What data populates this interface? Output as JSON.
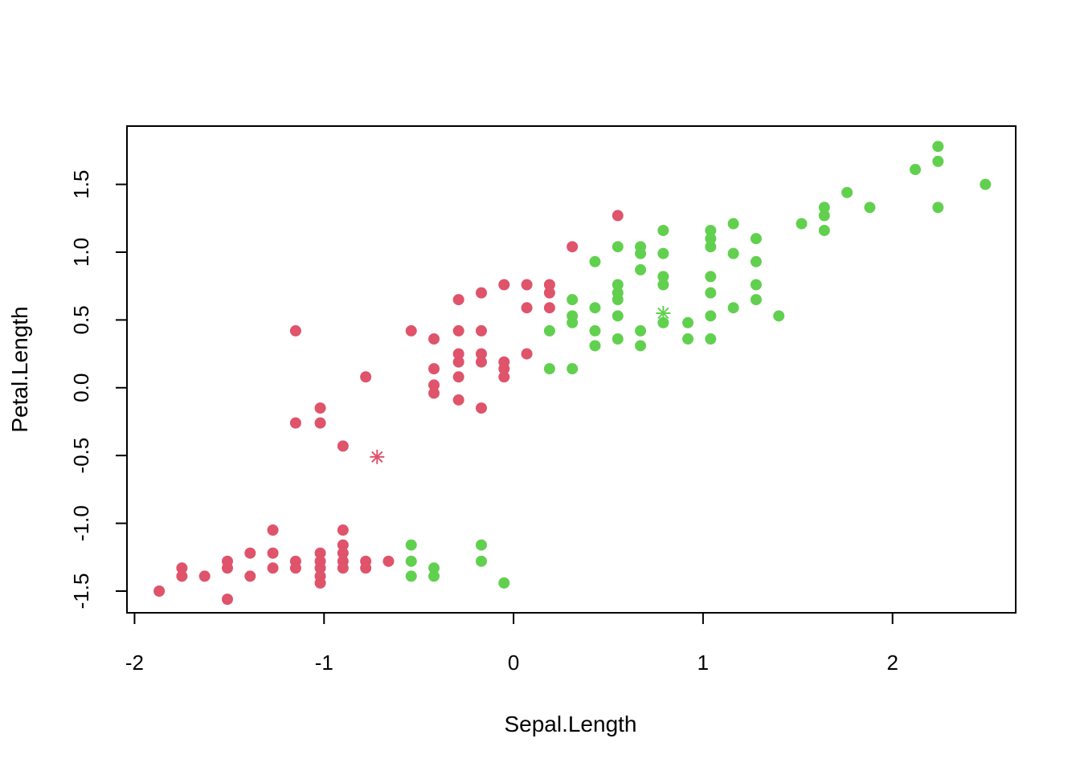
{
  "chart_data": {
    "type": "scatter",
    "xlabel": "Sepal.Length",
    "ylabel": "Petal.Length",
    "xlim": [
      -2.04,
      2.65
    ],
    "ylim": [
      -1.66,
      1.93
    ],
    "x_ticks": [
      -2,
      -1,
      0,
      1,
      2
    ],
    "x_tick_labels": [
      "-2",
      "-1",
      "0",
      "1",
      "2"
    ],
    "y_ticks": [
      -1.5,
      -1.0,
      -0.5,
      0.0,
      0.5,
      1.0,
      1.5
    ],
    "y_tick_labels": [
      "-1.5",
      "-1.0",
      "-0.5",
      "0.0",
      "0.5",
      "1.0",
      "1.5"
    ],
    "grid": false,
    "colors": {
      "cluster1": "#DF536B",
      "cluster2": "#61D04F"
    },
    "series": [
      {
        "color_key": "cluster1",
        "marker": "filled-circle",
        "points": [
          [
            -1.87,
            -1.5
          ],
          [
            -1.75,
            -1.33
          ],
          [
            -1.75,
            -1.39
          ],
          [
            -1.63,
            -1.39
          ],
          [
            -1.51,
            -1.28
          ],
          [
            -1.51,
            -1.33
          ],
          [
            -1.51,
            -1.56
          ],
          [
            -1.39,
            -1.22
          ],
          [
            -1.39,
            -1.39
          ],
          [
            -1.27,
            -1.05
          ],
          [
            -1.27,
            -1.22
          ],
          [
            -1.27,
            -1.33
          ],
          [
            -1.15,
            -1.28
          ],
          [
            -1.15,
            -1.33
          ],
          [
            -1.02,
            -1.22
          ],
          [
            -1.02,
            -1.28
          ],
          [
            -1.02,
            -1.33
          ],
          [
            -1.02,
            -1.39
          ],
          [
            -1.02,
            -1.44
          ],
          [
            -0.9,
            -1.05
          ],
          [
            -0.9,
            -1.16
          ],
          [
            -0.9,
            -1.22
          ],
          [
            -0.9,
            -1.28
          ],
          [
            -0.9,
            -1.33
          ],
          [
            -0.78,
            -1.28
          ],
          [
            -0.78,
            -1.33
          ],
          [
            -0.66,
            -1.28
          ],
          [
            -1.15,
            0.42
          ],
          [
            -1.15,
            -0.26
          ],
          [
            -1.02,
            -0.15
          ],
          [
            -1.02,
            -0.26
          ],
          [
            -0.9,
            -0.43
          ],
          [
            -0.78,
            0.08
          ],
          [
            -0.54,
            0.42
          ],
          [
            -0.42,
            0.36
          ],
          [
            -0.42,
            0.14
          ],
          [
            -0.42,
            0.02
          ],
          [
            -0.42,
            -0.04
          ],
          [
            -0.29,
            0.65
          ],
          [
            -0.29,
            0.42
          ],
          [
            -0.29,
            0.25
          ],
          [
            -0.29,
            0.19
          ],
          [
            -0.29,
            0.08
          ],
          [
            -0.29,
            -0.09
          ],
          [
            -0.17,
            0.7
          ],
          [
            -0.17,
            0.42
          ],
          [
            -0.17,
            0.25
          ],
          [
            -0.17,
            0.19
          ],
          [
            -0.17,
            -0.15
          ],
          [
            -0.05,
            0.76
          ],
          [
            -0.05,
            0.19
          ],
          [
            -0.05,
            0.14
          ],
          [
            -0.05,
            0.08
          ],
          [
            0.07,
            0.76
          ],
          [
            0.07,
            0.59
          ],
          [
            0.07,
            0.25
          ],
          [
            0.19,
            0.76
          ],
          [
            0.19,
            0.7
          ],
          [
            0.19,
            0.59
          ],
          [
            0.31,
            1.04
          ],
          [
            0.55,
            1.27
          ]
        ]
      },
      {
        "color_key": "cluster2",
        "marker": "filled-circle",
        "points": [
          [
            -0.54,
            -1.16
          ],
          [
            -0.54,
            -1.28
          ],
          [
            -0.54,
            -1.39
          ],
          [
            -0.42,
            -1.33
          ],
          [
            -0.42,
            -1.39
          ],
          [
            -0.17,
            -1.16
          ],
          [
            -0.17,
            -1.28
          ],
          [
            -0.05,
            -1.44
          ],
          [
            0.19,
            0.42
          ],
          [
            0.19,
            0.14
          ],
          [
            0.31,
            0.65
          ],
          [
            0.31,
            0.53
          ],
          [
            0.31,
            0.48
          ],
          [
            0.31,
            0.14
          ],
          [
            0.43,
            0.93
          ],
          [
            0.43,
            0.59
          ],
          [
            0.43,
            0.42
          ],
          [
            0.43,
            0.31
          ],
          [
            0.55,
            1.04
          ],
          [
            0.55,
            0.76
          ],
          [
            0.55,
            0.7
          ],
          [
            0.55,
            0.65
          ],
          [
            0.55,
            0.53
          ],
          [
            0.55,
            0.36
          ],
          [
            0.67,
            1.04
          ],
          [
            0.67,
            0.99
          ],
          [
            0.67,
            0.87
          ],
          [
            0.67,
            0.42
          ],
          [
            0.67,
            0.31
          ],
          [
            0.79,
            1.16
          ],
          [
            0.79,
            0.99
          ],
          [
            0.79,
            0.82
          ],
          [
            0.79,
            0.76
          ],
          [
            0.79,
            0.48
          ],
          [
            0.92,
            0.48
          ],
          [
            0.92,
            0.36
          ],
          [
            1.04,
            1.16
          ],
          [
            1.04,
            1.1
          ],
          [
            1.04,
            1.04
          ],
          [
            1.04,
            0.82
          ],
          [
            1.04,
            0.7
          ],
          [
            1.04,
            0.53
          ],
          [
            1.04,
            0.36
          ],
          [
            1.16,
            1.21
          ],
          [
            1.16,
            0.99
          ],
          [
            1.16,
            0.59
          ],
          [
            1.28,
            1.1
          ],
          [
            1.28,
            0.93
          ],
          [
            1.28,
            0.76
          ],
          [
            1.28,
            0.65
          ],
          [
            1.4,
            0.53
          ],
          [
            1.52,
            1.21
          ],
          [
            1.64,
            1.33
          ],
          [
            1.64,
            1.27
          ],
          [
            1.64,
            1.16
          ],
          [
            1.76,
            1.44
          ],
          [
            1.88,
            1.33
          ],
          [
            2.12,
            1.61
          ],
          [
            2.24,
            1.78
          ],
          [
            2.24,
            1.67
          ],
          [
            2.24,
            1.33
          ],
          [
            2.49,
            1.5
          ]
        ]
      }
    ],
    "centers": [
      {
        "color_key": "cluster1",
        "marker": "asterisk",
        "x": -0.72,
        "y": -0.51
      },
      {
        "color_key": "cluster2",
        "marker": "asterisk",
        "x": 0.79,
        "y": 0.55
      }
    ]
  }
}
